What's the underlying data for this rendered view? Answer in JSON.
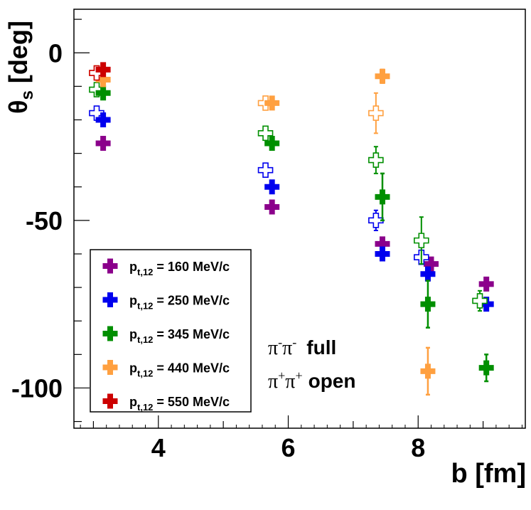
{
  "chart_data": {
    "type": "scatter",
    "xlabel": "b [fm]",
    "ylabel_symbol": "θ",
    "ylabel_sub": "s",
    "ylabel_unit": "[deg]",
    "xlim": [
      2.7,
      9.65
    ],
    "ylim": [
      -112,
      13
    ],
    "xticks": [
      4,
      6,
      8
    ],
    "yticks": [
      0,
      -50,
      -100
    ],
    "xtick_labels": [
      "4",
      "6",
      "8"
    ],
    "ytick_labels": [
      "0",
      "-50",
      "-100"
    ],
    "legend_position": "bottom-left",
    "series": [
      {
        "name": "p_t,12 = 160 MeV/c",
        "label_main": "p",
        "label_sub": "t,12",
        "label_rest": " = 160 MeV/c",
        "color": "#8b008b",
        "full": [
          {
            "x": 3.15,
            "y": -27,
            "err": 1
          },
          {
            "x": 5.75,
            "y": -46,
            "err": 1
          },
          {
            "x": 7.45,
            "y": -57,
            "err": 1
          },
          {
            "x": 8.2,
            "y": -63,
            "err": 1
          },
          {
            "x": 9.05,
            "y": -69,
            "err": 1
          }
        ],
        "open": []
      },
      {
        "name": "p_t,12 = 250 MeV/c",
        "label_main": "p",
        "label_sub": "t,12",
        "label_rest": " = 250 MeV/c",
        "color": "#0000ee",
        "full": [
          {
            "x": 3.15,
            "y": -20,
            "err": 1
          },
          {
            "x": 5.75,
            "y": -40,
            "err": 1
          },
          {
            "x": 7.45,
            "y": -60,
            "err": 1
          },
          {
            "x": 8.15,
            "y": -66,
            "err": 2
          },
          {
            "x": 9.05,
            "y": -75,
            "err": 1
          }
        ],
        "open": [
          {
            "x": 3.05,
            "y": -18,
            "err": 1
          },
          {
            "x": 5.65,
            "y": -35,
            "err": 1.5
          },
          {
            "x": 7.35,
            "y": -50,
            "err": 3
          },
          {
            "x": 8.05,
            "y": -61,
            "err": 2
          }
        ]
      },
      {
        "name": "p_t,12 = 345 MeV/c",
        "label_main": "p",
        "label_sub": "t,12",
        "label_rest": " = 345 MeV/c",
        "color": "#008f00",
        "full": [
          {
            "x": 3.15,
            "y": -12,
            "err": 1
          },
          {
            "x": 5.75,
            "y": -27,
            "err": 1
          },
          {
            "x": 7.45,
            "y": -43,
            "err": 7
          },
          {
            "x": 8.15,
            "y": -75,
            "err": 7
          },
          {
            "x": 9.05,
            "y": -94,
            "err": 4
          }
        ],
        "open": [
          {
            "x": 3.05,
            "y": -11,
            "err": 1
          },
          {
            "x": 5.65,
            "y": -24,
            "err": 1.5
          },
          {
            "x": 7.35,
            "y": -32,
            "err": 4
          },
          {
            "x": 8.05,
            "y": -56,
            "err": 7
          },
          {
            "x": 8.95,
            "y": -74,
            "err": 3
          }
        ]
      },
      {
        "name": "p_t,12 = 440 MeV/c",
        "label_main": "p",
        "label_sub": "t,12",
        "label_rest": " = 440 MeV/c",
        "color": "#ffa040",
        "full": [
          {
            "x": 3.15,
            "y": -8,
            "err": 1
          },
          {
            "x": 5.75,
            "y": -15,
            "err": 1
          },
          {
            "x": 7.45,
            "y": -7,
            "err": 2
          },
          {
            "x": 8.15,
            "y": -95,
            "err": 7
          }
        ],
        "open": [
          {
            "x": 3.05,
            "y": -6,
            "err": 1
          },
          {
            "x": 5.65,
            "y": -15,
            "err": 1.5
          },
          {
            "x": 7.35,
            "y": -18,
            "err": 6
          }
        ]
      },
      {
        "name": "p_t,12 = 550 MeV/c",
        "label_main": "p",
        "label_sub": "t,12",
        "label_rest": " = 550 MeV/c",
        "color": "#cc0000",
        "full": [
          {
            "x": 3.15,
            "y": -5,
            "err": 1
          }
        ],
        "open": [
          {
            "x": 3.05,
            "y": -6,
            "err": 1
          }
        ]
      }
    ],
    "annotations": {
      "full": {
        "p1": "π",
        "s1": "-",
        "p2": "π",
        "s2": "-",
        "word": "full"
      },
      "open": {
        "p1": "π",
        "s1": "+",
        "p2": "π",
        "s2": "+",
        "word": "open"
      }
    }
  }
}
